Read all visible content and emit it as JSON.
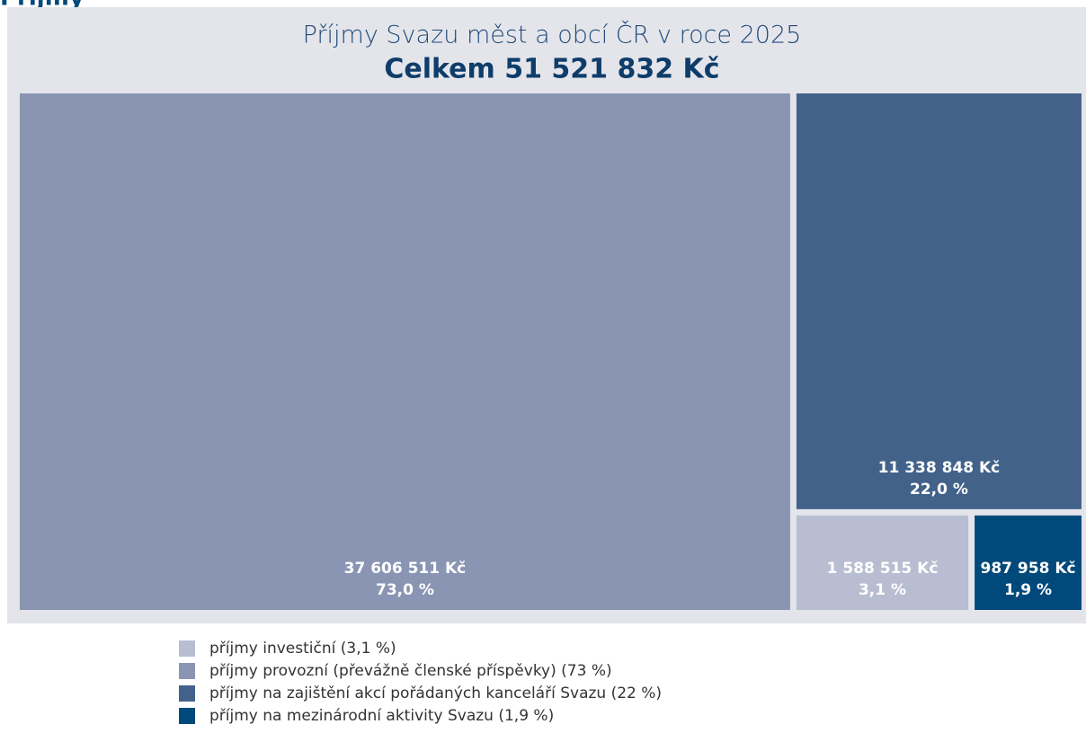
{
  "chart_data": {
    "type": "treemap",
    "heading": "Příjmy",
    "title": "Příjmy Svazu měst a obcí ČR v roce 2025",
    "subtitle": "Celkem 51 521 832 Kč",
    "series": [
      {
        "name": "příjmy investiční (3,1 %)",
        "color": "#b9bdd1",
        "values": [
          1588515
        ],
        "value_labels": [
          "1 588 515 Kč"
        ],
        "percents": [
          3.1
        ],
        "percent_labels": [
          "3,1 %"
        ]
      },
      {
        "name": "příjmy provozní (převážně členské příspěvky) (73 %)",
        "color": "#8a95b3",
        "values": [
          37606511
        ],
        "value_labels": [
          "37 606 511 Kč"
        ],
        "percents": [
          73.0
        ],
        "percent_labels": [
          "73,0 %"
        ]
      },
      {
        "name": "příjmy na zajištění akcí pořádaných kanceláří Svazu (22 %)",
        "color": "#42628a",
        "values": [
          11338848
        ],
        "value_labels": [
          "11 338 848 Kč"
        ],
        "percents": [
          22.0
        ],
        "percent_labels": [
          "22,0 %"
        ]
      },
      {
        "name": "příjmy na mezinárodní aktivity Svazu (1,9 %)",
        "color": "#00497a",
        "values": [
          987958
        ],
        "value_labels": [
          "987 958 Kč"
        ],
        "percents": [
          1.9
        ],
        "percent_labels": [
          "1,9 %"
        ]
      }
    ]
  }
}
